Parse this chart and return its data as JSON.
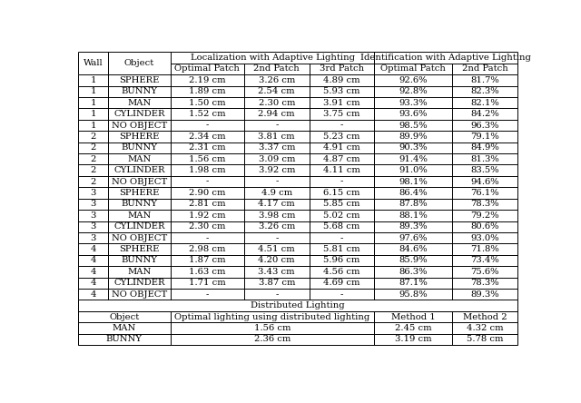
{
  "main_data": [
    [
      "1",
      "SPHERE",
      "2.19 cm",
      "3.26 cm",
      "4.89 cm",
      "92.6%",
      "81.7%"
    ],
    [
      "1",
      "BUNNY",
      "1.89 cm",
      "2.54 cm",
      "5.93 cm",
      "92.8%",
      "82.3%"
    ],
    [
      "1",
      "MAN",
      "1.50 cm",
      "2.30 cm",
      "3.91 cm",
      "93.3%",
      "82.1%"
    ],
    [
      "1",
      "CYLINDER",
      "1.52 cm",
      "2.94 cm",
      "3.75 cm",
      "93.6%",
      "84.2%"
    ],
    [
      "1",
      "NO OBJECT",
      "-",
      "-",
      "-",
      "98.5%",
      "96.3%"
    ],
    [
      "2",
      "SPHERE",
      "2.34 cm",
      "3.81 cm",
      "5.23 cm",
      "89.9%",
      "79.1%"
    ],
    [
      "2",
      "BUNNY",
      "2.31 cm",
      "3.37 cm",
      "4.91 cm",
      "90.3%",
      "84.9%"
    ],
    [
      "2",
      "MAN",
      "1.56 cm",
      "3.09 cm",
      "4.87 cm",
      "91.4%",
      "81.3%"
    ],
    [
      "2",
      "CYLINDER",
      "1.98 cm",
      "3.92 cm",
      "4.11 cm",
      "91.0%",
      "83.5%"
    ],
    [
      "2",
      "NO OBJECT",
      "-",
      "-",
      "-",
      "98.1%",
      "94.6%"
    ],
    [
      "3",
      "SPHERE",
      "2.90 cm",
      "4.9 cm",
      "6.15 cm",
      "86.4%",
      "76.1%"
    ],
    [
      "3",
      "BUNNY",
      "2.81 cm",
      "4.17 cm",
      "5.85 cm",
      "87.8%",
      "78.3%"
    ],
    [
      "3",
      "MAN",
      "1.92 cm",
      "3.98 cm",
      "5.02 cm",
      "88.1%",
      "79.2%"
    ],
    [
      "3",
      "CYLINDER",
      "2.30 cm",
      "3.26 cm",
      "5.68 cm",
      "89.3%",
      "80.6%"
    ],
    [
      "3",
      "NO OBJECT",
      "-",
      "-",
      "-",
      "97.6%",
      "93.0%"
    ],
    [
      "4",
      "SPHERE",
      "2.98 cm",
      "4.51 cm",
      "5.81 cm",
      "84.6%",
      "71.8%"
    ],
    [
      "4",
      "BUNNY",
      "1.87 cm",
      "4.20 cm",
      "5.96 cm",
      "85.9%",
      "73.4%"
    ],
    [
      "4",
      "MAN",
      "1.63 cm",
      "3.43 cm",
      "4.56 cm",
      "86.3%",
      "75.6%"
    ],
    [
      "4",
      "CYLINDER",
      "1.71 cm",
      "3.87 cm",
      "4.69 cm",
      "87.1%",
      "78.3%"
    ],
    [
      "4",
      "NO OBJECT",
      "-",
      "-",
      "-",
      "95.8%",
      "89.3%"
    ]
  ],
  "dist_header": "Distributed Lighting",
  "dist_col_headers": [
    "Object",
    "Optimal lighting using distributed lighting",
    "Method 1",
    "Method 2"
  ],
  "dist_data": [
    [
      "MAN",
      "1.56 cm",
      "2.45 cm",
      "4.32 cm"
    ],
    [
      "BUNNY",
      "2.36 cm",
      "3.19 cm",
      "5.78 cm"
    ]
  ],
  "bg_color": "#ffffff",
  "line_color": "#000000",
  "text_color": "#000000",
  "font_size": 7.2,
  "header_font_size": 7.2
}
